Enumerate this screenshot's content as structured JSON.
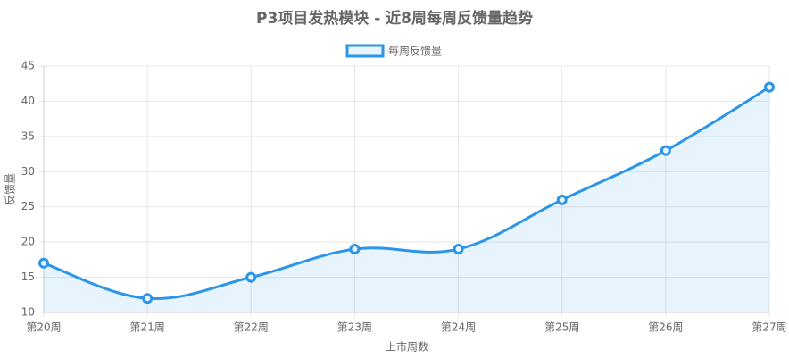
{
  "chart_data": {
    "type": "line",
    "title": "P3项目发热模块 - 近8周每周反馈量趋势",
    "x_label": "上市周数",
    "y_label": "反馈量",
    "categories": [
      "第20周",
      "第21周",
      "第22周",
      "第23周",
      "第24周",
      "第25周",
      "第26周",
      "第27周"
    ],
    "series": [
      {
        "name": "每周反馈量",
        "color": "#2d95e7",
        "fill": "rgba(54,162,235,0.12)",
        "values": [
          17,
          12,
          15,
          19,
          19,
          26,
          33,
          42
        ]
      }
    ],
    "ylim": [
      10,
      45
    ],
    "yticks": [
      10,
      15,
      20,
      25,
      30,
      35,
      40,
      45
    ],
    "grid": true,
    "legend": "top",
    "smooth": true,
    "filled": true
  }
}
